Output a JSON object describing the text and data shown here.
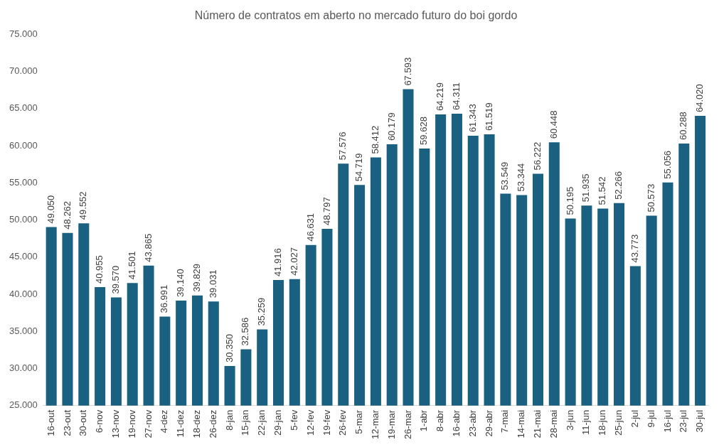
{
  "chart_data": {
    "type": "bar",
    "title": "Número de contratos em aberto no mercado futuro do boi gordo",
    "categories": [
      "16-out",
      "23-out",
      "30-out",
      "6-nov",
      "13-nov",
      "19-nov",
      "27-nov",
      "4-dez",
      "11-dez",
      "18-dez",
      "26-dez",
      "8-jan",
      "15-jan",
      "22-jan",
      "29-jan",
      "5-fev",
      "12-fev",
      "19-fev",
      "26-fev",
      "5-mar",
      "12-mar",
      "19-mar",
      "26-mar",
      "1-abr",
      "8-abr",
      "16-abr",
      "23-abr",
      "29-abr",
      "7-mai",
      "14-mai",
      "21-mai",
      "28-mai",
      "3-jun",
      "11-jun",
      "18-jun",
      "25-jun",
      "2-jul",
      "9-jul",
      "16-jul",
      "23-jul",
      "30-jul"
    ],
    "values": [
      49050,
      48262,
      49552,
      40955,
      39570,
      41501,
      43865,
      36991,
      39140,
      39829,
      39031,
      30350,
      32586,
      35259,
      41916,
      42027,
      46631,
      48797,
      57576,
      54719,
      58412,
      60179,
      67593,
      59628,
      64219,
      64311,
      61343,
      61519,
      53549,
      53344,
      56222,
      60448,
      50195,
      51935,
      51542,
      52266,
      43773,
      50573,
      55056,
      60288,
      64020
    ],
    "value_labels": [
      "49.050",
      "48.262",
      "49.552",
      "40.955",
      "39.570",
      "41.501",
      "43.865",
      "36.991",
      "39.140",
      "39.829",
      "39.031",
      "30.350",
      "32.586",
      "35.259",
      "41.916",
      "42.027",
      "46.631",
      "48.797",
      "57.576",
      "54.719",
      "58.412",
      "60.179",
      "67.593",
      "59.628",
      "64.219",
      "64.311",
      "61.343",
      "61.519",
      "53.549",
      "53.344",
      "56.222",
      "60.448",
      "50.195",
      "51.935",
      "51.542",
      "52.266",
      "43.773",
      "50.573",
      "55.056",
      "60.288",
      "64.020"
    ],
    "color": "#1a6081",
    "ylim": [
      25000,
      75000
    ],
    "yticks": [
      {
        "value": 25000,
        "label": "25.000"
      },
      {
        "value": 30000,
        "label": "30.000"
      },
      {
        "value": 35000,
        "label": "35.000"
      },
      {
        "value": 40000,
        "label": "40.000"
      },
      {
        "value": 45000,
        "label": "45.000"
      },
      {
        "value": 50000,
        "label": "50.000"
      },
      {
        "value": 55000,
        "label": "55.000"
      },
      {
        "value": 60000,
        "label": "60.000"
      },
      {
        "value": 65000,
        "label": "65.000"
      },
      {
        "value": 70000,
        "label": "70.000"
      },
      {
        "value": 75000,
        "label": "75.000"
      }
    ],
    "grid": false,
    "legend": false
  }
}
